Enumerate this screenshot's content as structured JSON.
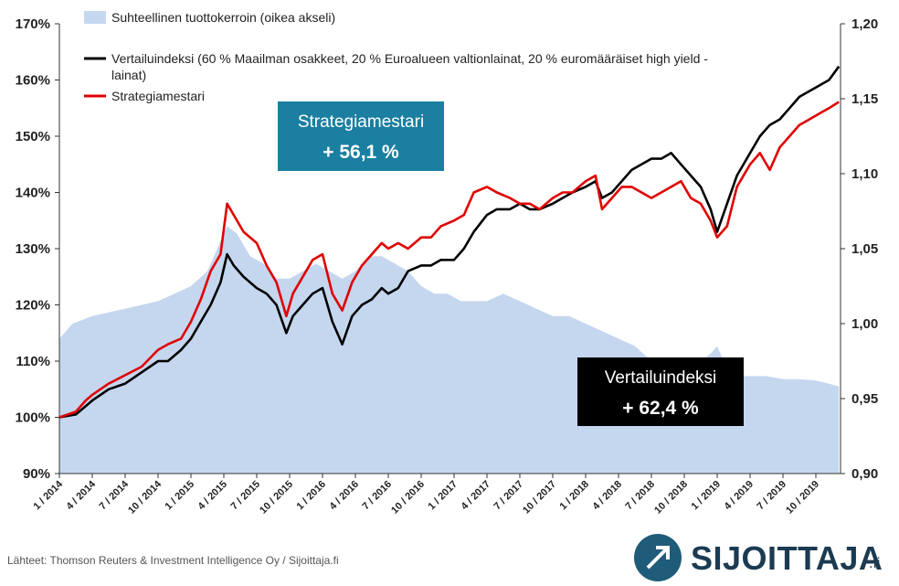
{
  "chart_data": {
    "type": "line",
    "title": "",
    "legend": {
      "placement": "top-left",
      "entries": [
        {
          "name": "Suhteellinen tuottokerroin (oikea akseli)",
          "color": "#c5d7ef",
          "kind": "area"
        },
        {
          "name": "Vertailuindeksi (60 % Maailman osakkeet, 20 % Euroalueen valtionlainat, 20 % euromääräiset high yield - lainat)",
          "color": "#000000",
          "kind": "line"
        },
        {
          "name": "Strategiamestari",
          "color": "#e00000",
          "kind": "line"
        }
      ]
    },
    "y_left": {
      "min": 90,
      "max": 170,
      "ticks": [
        "90%",
        "100%",
        "110%",
        "120%",
        "130%",
        "140%",
        "150%",
        "160%",
        "170%"
      ]
    },
    "y_right": {
      "min": 0.9,
      "max": 1.2,
      "ticks": [
        "0,90",
        "0,95",
        "1,00",
        "1,05",
        "1,10",
        "1,15",
        "1,20"
      ]
    },
    "x_ticks": [
      "1 / 2014",
      "4 / 2014",
      "7 / 2014",
      "10 / 2014",
      "1 / 2015",
      "4 / 2015",
      "7 / 2015",
      "10 / 2015",
      "1 / 2016",
      "4 / 2016",
      "7 / 2016",
      "10 / 2016",
      "1 / 2017",
      "4 / 2017",
      "7 / 2017",
      "10 / 2017",
      "1 / 2018",
      "4 / 2018",
      "7 / 2018",
      "10 / 2018",
      "1 / 2019",
      "4 / 2019",
      "7 / 2019",
      "10 / 2019"
    ],
    "x_range": [
      0,
      23.75
    ],
    "grid": false,
    "series": [
      {
        "name": "Strategiamestari",
        "axis": "left",
        "color": "#e00000",
        "points": [
          [
            0,
            100
          ],
          [
            0.5,
            101
          ],
          [
            0.8,
            103
          ],
          [
            1,
            104
          ],
          [
            1.5,
            106
          ],
          [
            2,
            107.5
          ],
          [
            2.5,
            109
          ],
          [
            3,
            112
          ],
          [
            3.3,
            113
          ],
          [
            3.7,
            114
          ],
          [
            4,
            117
          ],
          [
            4.3,
            121
          ],
          [
            4.6,
            126
          ],
          [
            4.9,
            129
          ],
          [
            5.1,
            138
          ],
          [
            5.3,
            136
          ],
          [
            5.6,
            133
          ],
          [
            6,
            131
          ],
          [
            6.3,
            127
          ],
          [
            6.6,
            124
          ],
          [
            6.9,
            118
          ],
          [
            7.1,
            122
          ],
          [
            7.4,
            125
          ],
          [
            7.7,
            128
          ],
          [
            8,
            129
          ],
          [
            8.3,
            122
          ],
          [
            8.6,
            119
          ],
          [
            8.9,
            124
          ],
          [
            9.2,
            127
          ],
          [
            9.5,
            129
          ],
          [
            9.8,
            131
          ],
          [
            10,
            130
          ],
          [
            10.3,
            131
          ],
          [
            10.6,
            130
          ],
          [
            11,
            132
          ],
          [
            11.3,
            132
          ],
          [
            11.6,
            134
          ],
          [
            12,
            135
          ],
          [
            12.3,
            136
          ],
          [
            12.6,
            140
          ],
          [
            13,
            141
          ],
          [
            13.3,
            140
          ],
          [
            13.7,
            139
          ],
          [
            14,
            138
          ],
          [
            14.3,
            138
          ],
          [
            14.6,
            137
          ],
          [
            15,
            139
          ],
          [
            15.3,
            140
          ],
          [
            15.6,
            140
          ],
          [
            16,
            142
          ],
          [
            16.3,
            143
          ],
          [
            16.5,
            137
          ],
          [
            16.8,
            139
          ],
          [
            17.1,
            141
          ],
          [
            17.4,
            141
          ],
          [
            17.7,
            140
          ],
          [
            18,
            139
          ],
          [
            18.3,
            140
          ],
          [
            18.6,
            141
          ],
          [
            18.9,
            142
          ],
          [
            19.2,
            139
          ],
          [
            19.5,
            138
          ],
          [
            19.8,
            135
          ],
          [
            20,
            132
          ],
          [
            20.3,
            134
          ],
          [
            20.6,
            141
          ],
          [
            21,
            145
          ],
          [
            21.3,
            147
          ],
          [
            21.6,
            144
          ],
          [
            21.9,
            148
          ],
          [
            22.2,
            150
          ],
          [
            22.5,
            152
          ],
          [
            22.8,
            153
          ],
          [
            23.1,
            154
          ],
          [
            23.4,
            155
          ],
          [
            23.7,
            156.1
          ]
        ]
      },
      {
        "name": "Vertailuindeksi",
        "axis": "left",
        "color": "#000000",
        "points": [
          [
            0,
            100
          ],
          [
            0.5,
            100.5
          ],
          [
            0.8,
            102
          ],
          [
            1,
            103
          ],
          [
            1.5,
            105
          ],
          [
            2,
            106
          ],
          [
            2.5,
            108
          ],
          [
            3,
            110
          ],
          [
            3.3,
            110
          ],
          [
            3.7,
            112
          ],
          [
            4,
            114
          ],
          [
            4.3,
            117
          ],
          [
            4.6,
            120
          ],
          [
            4.9,
            124
          ],
          [
            5.1,
            129
          ],
          [
            5.3,
            127
          ],
          [
            5.6,
            125
          ],
          [
            6,
            123
          ],
          [
            6.3,
            122
          ],
          [
            6.6,
            120
          ],
          [
            6.9,
            115
          ],
          [
            7.1,
            118
          ],
          [
            7.4,
            120
          ],
          [
            7.7,
            122
          ],
          [
            8,
            123
          ],
          [
            8.3,
            117
          ],
          [
            8.6,
            113
          ],
          [
            8.9,
            118
          ],
          [
            9.2,
            120
          ],
          [
            9.5,
            121
          ],
          [
            9.8,
            123
          ],
          [
            10,
            122
          ],
          [
            10.3,
            123
          ],
          [
            10.6,
            126
          ],
          [
            11,
            127
          ],
          [
            11.3,
            127
          ],
          [
            11.6,
            128
          ],
          [
            12,
            128
          ],
          [
            12.3,
            130
          ],
          [
            12.6,
            133
          ],
          [
            13,
            136
          ],
          [
            13.3,
            137
          ],
          [
            13.7,
            137
          ],
          [
            14,
            138
          ],
          [
            14.3,
            137
          ],
          [
            14.6,
            137
          ],
          [
            15,
            138
          ],
          [
            15.3,
            139
          ],
          [
            15.6,
            140
          ],
          [
            16,
            141
          ],
          [
            16.3,
            142
          ],
          [
            16.5,
            139
          ],
          [
            16.8,
            140
          ],
          [
            17.1,
            142
          ],
          [
            17.4,
            144
          ],
          [
            17.7,
            145
          ],
          [
            18,
            146
          ],
          [
            18.3,
            146
          ],
          [
            18.6,
            147
          ],
          [
            18.9,
            145
          ],
          [
            19.2,
            143
          ],
          [
            19.5,
            141
          ],
          [
            19.8,
            137
          ],
          [
            20,
            133
          ],
          [
            20.3,
            138
          ],
          [
            20.6,
            143
          ],
          [
            21,
            147
          ],
          [
            21.3,
            150
          ],
          [
            21.6,
            152
          ],
          [
            21.9,
            153
          ],
          [
            22.2,
            155
          ],
          [
            22.5,
            157
          ],
          [
            22.8,
            158
          ],
          [
            23.1,
            159
          ],
          [
            23.4,
            160
          ],
          [
            23.7,
            162.4
          ]
        ]
      },
      {
        "name": "Suhteellinen tuottokerroin",
        "axis": "right",
        "color": "#c5d7ef",
        "points": [
          [
            0,
            0.99
          ],
          [
            0.4,
            1.0
          ],
          [
            1,
            1.005
          ],
          [
            2,
            1.01
          ],
          [
            3,
            1.015
          ],
          [
            3.5,
            1.02
          ],
          [
            4,
            1.025
          ],
          [
            4.5,
            1.035
          ],
          [
            4.9,
            1.055
          ],
          [
            5.1,
            1.065
          ],
          [
            5.4,
            1.06
          ],
          [
            5.8,
            1.045
          ],
          [
            6.2,
            1.04
          ],
          [
            6.6,
            1.03
          ],
          [
            7,
            1.03
          ],
          [
            7.4,
            1.035
          ],
          [
            7.8,
            1.04
          ],
          [
            8.2,
            1.035
          ],
          [
            8.6,
            1.03
          ],
          [
            9,
            1.035
          ],
          [
            9.4,
            1.045
          ],
          [
            9.8,
            1.045
          ],
          [
            10.2,
            1.04
          ],
          [
            10.6,
            1.035
          ],
          [
            11,
            1.025
          ],
          [
            11.4,
            1.02
          ],
          [
            11.8,
            1.02
          ],
          [
            12.2,
            1.015
          ],
          [
            12.6,
            1.015
          ],
          [
            13,
            1.015
          ],
          [
            13.5,
            1.02
          ],
          [
            14,
            1.015
          ],
          [
            14.5,
            1.01
          ],
          [
            15,
            1.005
          ],
          [
            15.5,
            1.005
          ],
          [
            16,
            1.0
          ],
          [
            16.5,
            0.995
          ],
          [
            17,
            0.99
          ],
          [
            17.5,
            0.985
          ],
          [
            18,
            0.975
          ],
          [
            18.5,
            0.975
          ],
          [
            19,
            0.975
          ],
          [
            19.5,
            0.975
          ],
          [
            19.8,
            0.98
          ],
          [
            20,
            0.985
          ],
          [
            20.3,
            0.97
          ],
          [
            20.6,
            0.965
          ],
          [
            21,
            0.965
          ],
          [
            21.5,
            0.965
          ],
          [
            22,
            0.963
          ],
          [
            22.5,
            0.963
          ],
          [
            23,
            0.962
          ],
          [
            23.4,
            0.96
          ],
          [
            23.7,
            0.958
          ]
        ]
      }
    ]
  },
  "annotations": {
    "strategiamestari": {
      "name": "Strategiamestari",
      "value": "+ 56,1 %",
      "color": "#1a7fa0"
    },
    "vertailuindeksi": {
      "name": "Vertailuindeksi",
      "value": "+ 62,4 %",
      "color": "#000000"
    }
  },
  "source_text": "Lähteet: Thomson Reuters & Investment Intelligence Oy / Sijoittaja.fi",
  "brand": {
    "word": "SIJOITTAJA",
    "suffix": ".fi"
  }
}
